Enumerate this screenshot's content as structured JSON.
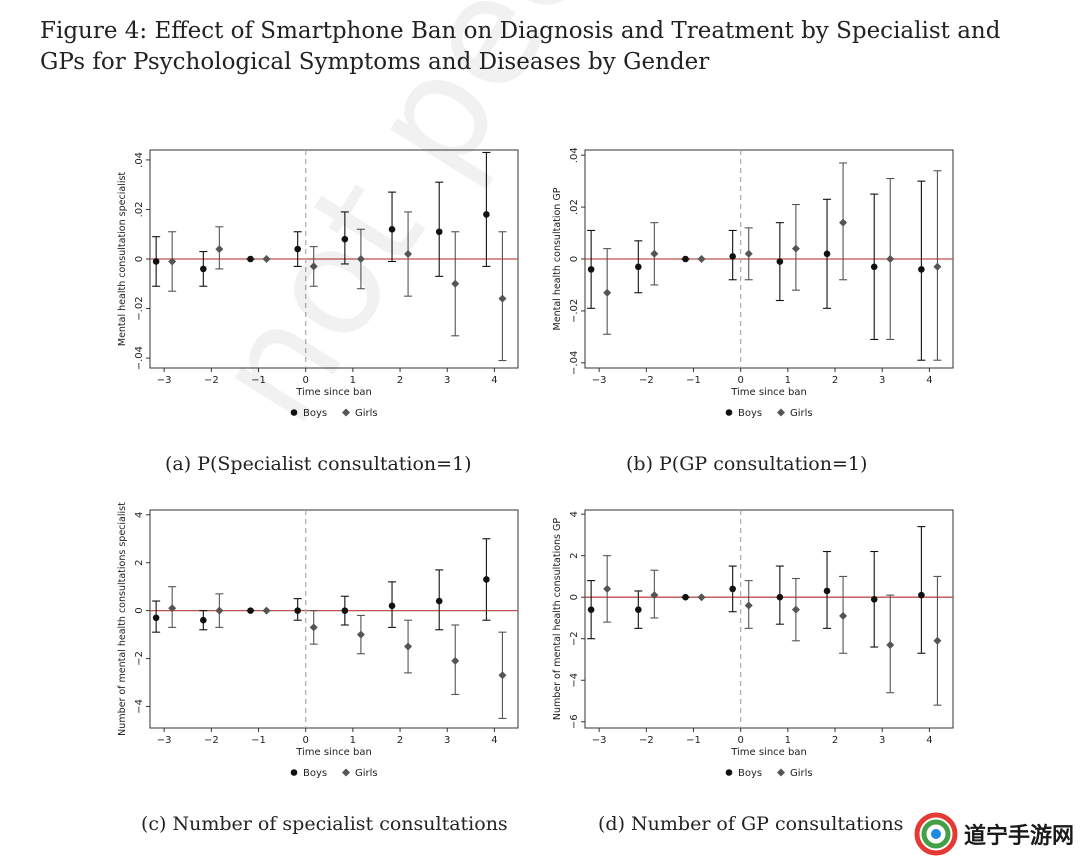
{
  "figure": {
    "title": "Figure 4: Effect of Smartphone Ban on Diagnosis and Treatment by Specialist and GPs for Psychological Symptoms and Diseases by Gender",
    "watermark": "not peer review",
    "logo_text": "道宁手游网"
  },
  "legend": {
    "boys": "Boys",
    "girls": "Girls"
  },
  "colors": {
    "zero_line": "#c0504d",
    "boys": "#111111",
    "girls": "#555555",
    "ban_line": "#aaaaaa"
  },
  "chart_data": [
    {
      "type": "scatter",
      "caption": "(a) P(Specialist consultation=1)",
      "xlabel": "Time since ban",
      "ylabel": "Mental health consultation specialist",
      "x_ticks": [
        -3,
        -2,
        -1,
        0,
        1,
        2,
        3,
        4
      ],
      "y_ticks": [
        -0.04,
        -0.02,
        0,
        0.02,
        0.04
      ],
      "y_tick_labels": [
        "-.04",
        "-.02",
        "0",
        ".02",
        ".04"
      ],
      "ylim": [
        -0.044,
        0.044
      ],
      "series": [
        {
          "name": "Boys",
          "marker": "circle",
          "x": [
            -3,
            -2,
            -1,
            0,
            1,
            2,
            3,
            4
          ],
          "y": [
            -0.001,
            -0.004,
            0.0,
            0.004,
            0.008,
            0.012,
            0.011,
            0.018
          ],
          "lo": [
            -0.011,
            -0.011,
            0.0,
            -0.003,
            -0.002,
            -0.001,
            -0.007,
            -0.003
          ],
          "hi": [
            0.009,
            0.003,
            0.0,
            0.011,
            0.019,
            0.027,
            0.031,
            0.043
          ]
        },
        {
          "name": "Girls",
          "marker": "diamond",
          "x": [
            -3,
            -2,
            -1,
            0,
            1,
            2,
            3,
            4
          ],
          "y": [
            -0.001,
            0.004,
            0.0,
            -0.003,
            0.0,
            0.002,
            -0.01,
            -0.016
          ],
          "lo": [
            -0.013,
            -0.004,
            0.0,
            -0.011,
            -0.012,
            -0.015,
            -0.031,
            -0.041
          ],
          "hi": [
            0.011,
            0.013,
            0.0,
            0.005,
            0.012,
            0.019,
            0.011,
            0.011
          ]
        }
      ]
    },
    {
      "type": "scatter",
      "caption": "(b) P(GP consultation=1)",
      "xlabel": "Time since ban",
      "ylabel": "Mental health consultation GP",
      "x_ticks": [
        -3,
        -2,
        -1,
        0,
        1,
        2,
        3,
        4
      ],
      "y_ticks": [
        -0.04,
        -0.02,
        0,
        0.02,
        0.04
      ],
      "y_tick_labels": [
        "-.04",
        "-.02",
        "0",
        ".02",
        ".04"
      ],
      "ylim": [
        -0.042,
        0.042
      ],
      "series": [
        {
          "name": "Boys",
          "marker": "circle",
          "x": [
            -3,
            -2,
            -1,
            0,
            1,
            2,
            3,
            4
          ],
          "y": [
            -0.004,
            -0.003,
            0.0,
            0.001,
            -0.001,
            0.002,
            -0.003,
            -0.004
          ],
          "lo": [
            -0.019,
            -0.013,
            0.0,
            -0.008,
            -0.016,
            -0.019,
            -0.031,
            -0.039
          ],
          "hi": [
            0.011,
            0.007,
            0.0,
            0.011,
            0.014,
            0.023,
            0.025,
            0.03
          ]
        },
        {
          "name": "Girls",
          "marker": "diamond",
          "x": [
            -3,
            -2,
            -1,
            0,
            1,
            2,
            3,
            4
          ],
          "y": [
            -0.013,
            0.002,
            0.0,
            0.002,
            0.004,
            0.014,
            0.0,
            -0.003
          ],
          "lo": [
            -0.029,
            -0.01,
            0.0,
            -0.008,
            -0.012,
            -0.008,
            -0.031,
            -0.039
          ],
          "hi": [
            0.004,
            0.014,
            0.0,
            0.012,
            0.021,
            0.037,
            0.031,
            0.034
          ]
        }
      ]
    },
    {
      "type": "scatter",
      "caption": "(c) Number of specialist consultations",
      "xlabel": "Time since ban",
      "ylabel": "Number of mental health consultations specialist",
      "x_ticks": [
        -3,
        -2,
        -1,
        0,
        1,
        2,
        3,
        4
      ],
      "y_ticks": [
        -4,
        -2,
        0,
        2,
        4
      ],
      "y_tick_labels": [
        "-4",
        "-2",
        "0",
        "2",
        "4"
      ],
      "ylim": [
        -4.9,
        4.2
      ],
      "series": [
        {
          "name": "Boys",
          "marker": "circle",
          "x": [
            -3,
            -2,
            -1,
            0,
            1,
            2,
            3,
            4
          ],
          "y": [
            -0.3,
            -0.4,
            0.0,
            0.0,
            0.0,
            0.2,
            0.4,
            1.3
          ],
          "lo": [
            -0.9,
            -0.8,
            0.0,
            -0.4,
            -0.6,
            -0.7,
            -0.8,
            -0.4
          ],
          "hi": [
            0.4,
            0.0,
            0.0,
            0.5,
            0.6,
            1.2,
            1.7,
            3.0
          ]
        },
        {
          "name": "Girls",
          "marker": "diamond",
          "x": [
            -3,
            -2,
            -1,
            0,
            1,
            2,
            3,
            4
          ],
          "y": [
            0.1,
            0.0,
            0.0,
            -0.7,
            -1.0,
            -1.5,
            -2.1,
            -2.7
          ],
          "lo": [
            -0.7,
            -0.7,
            0.0,
            -1.4,
            -1.8,
            -2.6,
            -3.5,
            -4.5
          ],
          "hi": [
            1.0,
            0.7,
            0.0,
            0.0,
            -0.2,
            -0.4,
            -0.6,
            -0.9
          ]
        }
      ]
    },
    {
      "type": "scatter",
      "caption": "(d) Number of GP consultations",
      "xlabel": "Time since ban",
      "ylabel": "Number of mental health consultations GP",
      "x_ticks": [
        -3,
        -2,
        -1,
        0,
        1,
        2,
        3,
        4
      ],
      "y_ticks": [
        -6,
        -4,
        -2,
        0,
        2,
        4
      ],
      "y_tick_labels": [
        "-6",
        "-4",
        "-2",
        "0",
        "2",
        "4"
      ],
      "ylim": [
        -6.3,
        4.2
      ],
      "series": [
        {
          "name": "Boys",
          "marker": "circle",
          "x": [
            -3,
            -2,
            -1,
            0,
            1,
            2,
            3,
            4
          ],
          "y": [
            -0.6,
            -0.6,
            0.0,
            0.4,
            0.0,
            0.3,
            -0.1,
            0.1
          ],
          "lo": [
            -2.0,
            -1.5,
            0.0,
            -0.7,
            -1.3,
            -1.5,
            -2.4,
            -2.7
          ],
          "hi": [
            0.8,
            0.3,
            0.0,
            1.5,
            1.5,
            2.2,
            2.2,
            3.4
          ]
        },
        {
          "name": "Girls",
          "marker": "diamond",
          "x": [
            -3,
            -2,
            -1,
            0,
            1,
            2,
            3,
            4
          ],
          "y": [
            0.4,
            0.1,
            0.0,
            -0.4,
            -0.6,
            -0.9,
            -2.3,
            -2.1
          ],
          "lo": [
            -1.2,
            -1.0,
            0.0,
            -1.5,
            -2.1,
            -2.7,
            -4.6,
            -5.2
          ],
          "hi": [
            2.0,
            1.3,
            0.0,
            0.8,
            0.9,
            1.0,
            0.1,
            1.0
          ]
        }
      ]
    }
  ]
}
